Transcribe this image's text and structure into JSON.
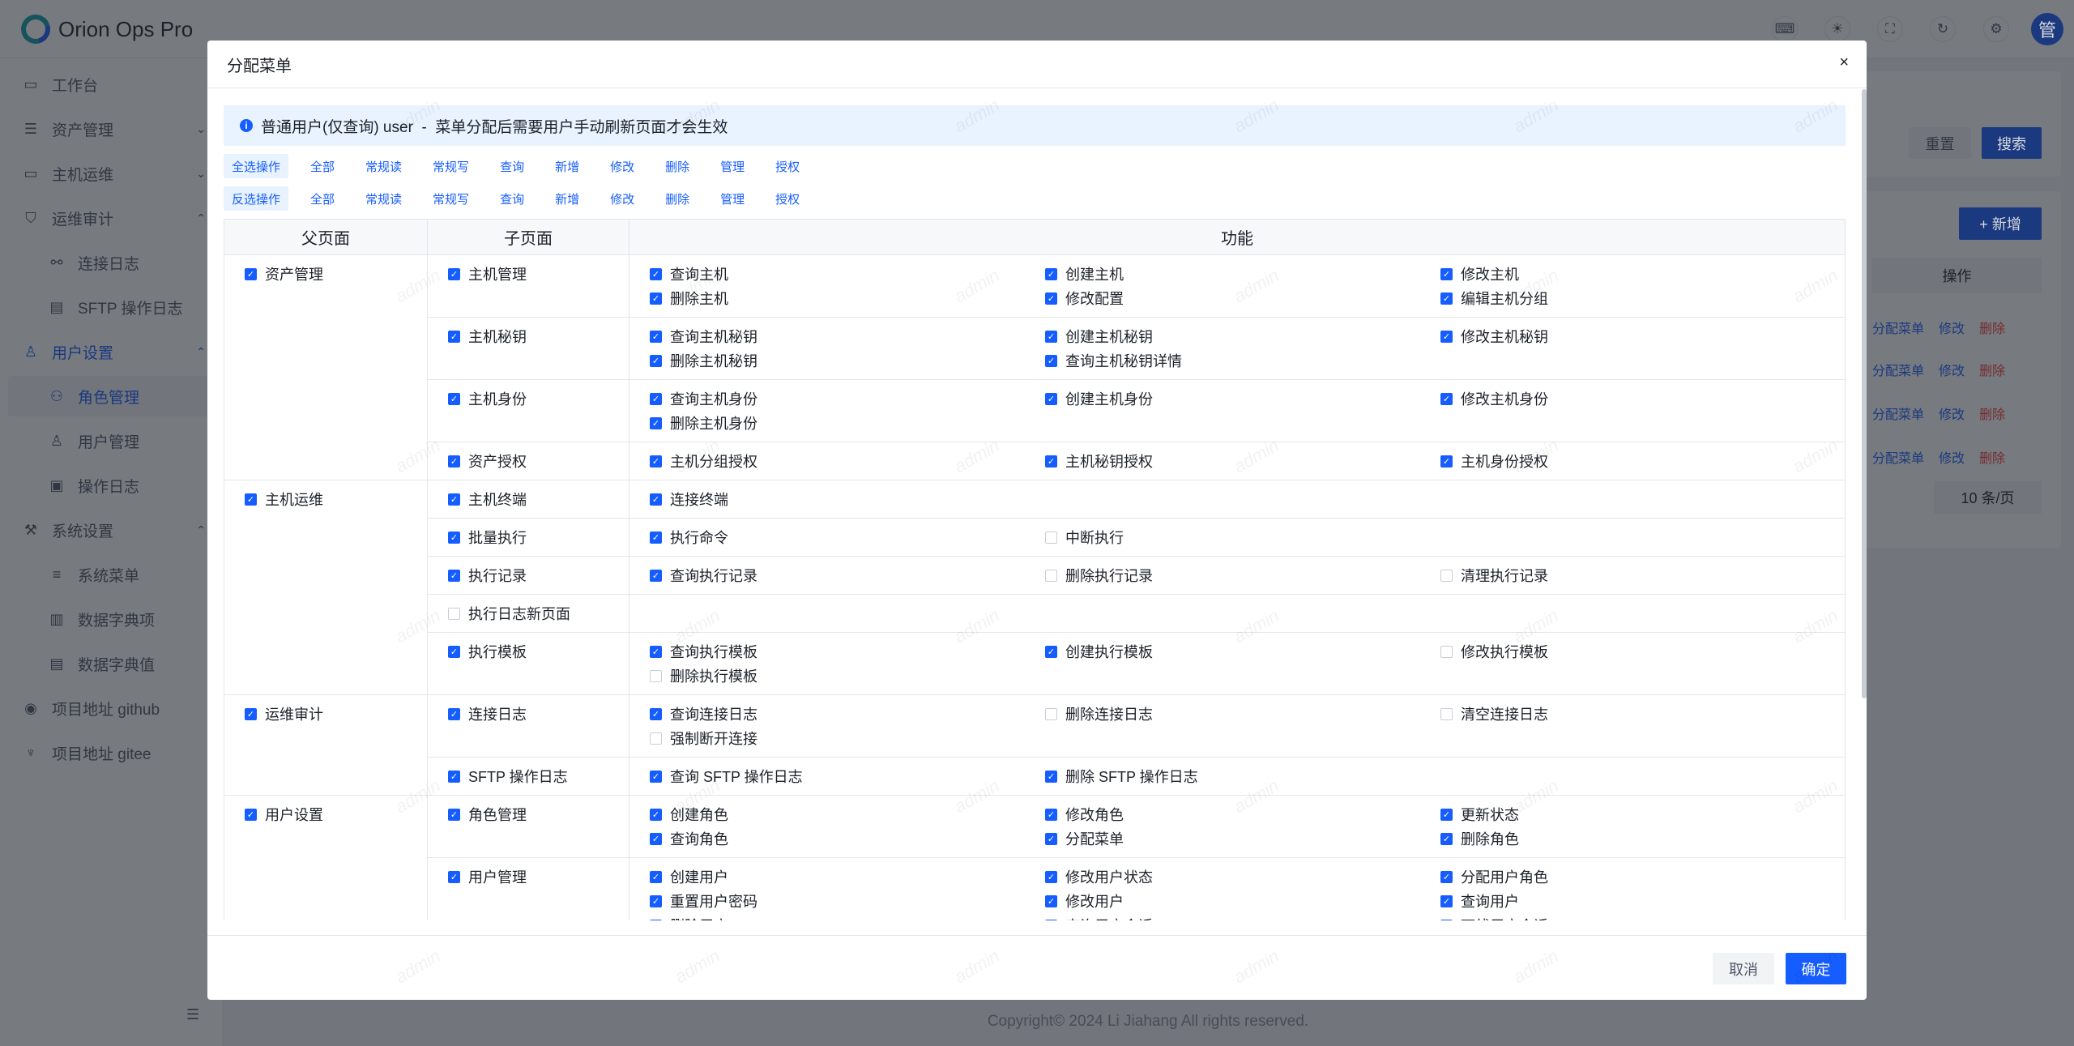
{
  "app": {
    "title": "Orion Ops Pro",
    "avatar": "管",
    "header_icons": [
      "code-icon",
      "theme-icon",
      "fullscreen-icon",
      "refresh-icon",
      "settings-icon"
    ]
  },
  "sidebar": {
    "items": [
      {
        "label": "工作台",
        "icon": "dashboard-icon",
        "level": "top"
      },
      {
        "label": "资产管理",
        "icon": "asset-icon",
        "level": "top",
        "arrow": "v"
      },
      {
        "label": "主机运维",
        "icon": "monitor-icon",
        "level": "top",
        "arrow": "v"
      },
      {
        "label": "运维审计",
        "icon": "shield-icon",
        "level": "top",
        "arrow": "^"
      },
      {
        "label": "连接日志",
        "icon": "link-icon",
        "level": "sub"
      },
      {
        "label": "SFTP 操作日志",
        "icon": "file-icon",
        "level": "sub"
      },
      {
        "label": "用户设置",
        "icon": "user-icon",
        "level": "top",
        "arrow": "^",
        "active": true
      },
      {
        "label": "角色管理",
        "icon": "users-icon",
        "level": "sub",
        "selected": true
      },
      {
        "label": "用户管理",
        "icon": "user-add-icon",
        "level": "sub"
      },
      {
        "label": "操作日志",
        "icon": "log-icon",
        "level": "sub"
      },
      {
        "label": "系统设置",
        "icon": "wrench-icon",
        "level": "top",
        "arrow": "^"
      },
      {
        "label": "系统菜单",
        "icon": "menu-icon",
        "level": "sub"
      },
      {
        "label": "数据字典项",
        "icon": "book-icon",
        "level": "sub"
      },
      {
        "label": "数据字典值",
        "icon": "table-icon",
        "level": "sub"
      },
      {
        "label": "项目地址 github",
        "icon": "github-icon",
        "level": "top"
      },
      {
        "label": "项目地址 gitee",
        "icon": "gitee-icon",
        "level": "top"
      }
    ]
  },
  "background": {
    "reset": "重置",
    "search": "搜索",
    "add": "+ 新增",
    "op_header": "操作",
    "row_actions": [
      "分配菜单",
      "修改",
      "删除"
    ],
    "page_size": "10 条/页",
    "copyright": "Copyright© 2024 Li Jiahang All rights reserved."
  },
  "modal": {
    "title": "分配菜单",
    "close": "×",
    "alert": "普通用户(仅查询) user  -  菜单分配后需要用户手动刷新页面才会生效",
    "select_row": {
      "lead": "全选操作",
      "items": [
        "全部",
        "常规读",
        "常规写",
        "查询",
        "新增",
        "修改",
        "删除",
        "管理",
        "授权"
      ]
    },
    "invert_row": {
      "lead": "反选操作",
      "items": [
        "全部",
        "常规读",
        "常规写",
        "查询",
        "新增",
        "修改",
        "删除",
        "管理",
        "授权"
      ]
    },
    "columns": [
      "父页面",
      "子页面",
      "功能"
    ],
    "groups": [
      {
        "label": "资产管理",
        "checked": true,
        "children": [
          {
            "label": "主机管理",
            "checked": true,
            "functions": [
              [
                "查询主机",
                true
              ],
              [
                "创建主机",
                true
              ],
              [
                "修改主机",
                true
              ],
              [
                "删除主机",
                true
              ],
              [
                "修改配置",
                true
              ],
              [
                "编辑主机分组",
                true
              ]
            ]
          },
          {
            "label": "主机秘钥",
            "checked": true,
            "functions": [
              [
                "查询主机秘钥",
                true
              ],
              [
                "创建主机秘钥",
                true
              ],
              [
                "修改主机秘钥",
                true
              ],
              [
                "删除主机秘钥",
                true
              ],
              [
                "查询主机秘钥详情",
                true
              ]
            ]
          },
          {
            "label": "主机身份",
            "checked": true,
            "functions": [
              [
                "查询主机身份",
                true
              ],
              [
                "创建主机身份",
                true
              ],
              [
                "修改主机身份",
                true
              ],
              [
                "删除主机身份",
                true
              ]
            ]
          },
          {
            "label": "资产授权",
            "checked": true,
            "functions": [
              [
                "主机分组授权",
                true
              ],
              [
                "主机秘钥授权",
                true
              ],
              [
                "主机身份授权",
                true
              ]
            ]
          }
        ]
      },
      {
        "label": "主机运维",
        "checked": true,
        "children": [
          {
            "label": "主机终端",
            "checked": true,
            "functions": [
              [
                "连接终端",
                true
              ]
            ]
          },
          {
            "label": "批量执行",
            "checked": true,
            "functions": [
              [
                "执行命令",
                true
              ],
              [
                "中断执行",
                false
              ]
            ]
          },
          {
            "label": "执行记录",
            "checked": true,
            "functions": [
              [
                "查询执行记录",
                true
              ],
              [
                "删除执行记录",
                false
              ],
              [
                "清理执行记录",
                false
              ]
            ]
          },
          {
            "label": "执行日志新页面",
            "checked": false,
            "functions": []
          },
          {
            "label": "执行模板",
            "checked": true,
            "functions": [
              [
                "查询执行模板",
                true
              ],
              [
                "创建执行模板",
                true
              ],
              [
                "修改执行模板",
                false
              ],
              [
                "删除执行模板",
                false
              ]
            ]
          }
        ]
      },
      {
        "label": "运维审计",
        "checked": true,
        "children": [
          {
            "label": "连接日志",
            "checked": true,
            "functions": [
              [
                "查询连接日志",
                true
              ],
              [
                "删除连接日志",
                false
              ],
              [
                "清空连接日志",
                false
              ],
              [
                "强制断开连接",
                false
              ]
            ]
          },
          {
            "label": "SFTP 操作日志",
            "checked": true,
            "functions": [
              [
                "查询 SFTP 操作日志",
                true
              ],
              [
                "删除 SFTP 操作日志",
                true
              ]
            ]
          }
        ]
      },
      {
        "label": "用户设置",
        "checked": true,
        "children": [
          {
            "label": "角色管理",
            "checked": true,
            "functions": [
              [
                "创建角色",
                true
              ],
              [
                "修改角色",
                true
              ],
              [
                "更新状态",
                true
              ],
              [
                "查询角色",
                true
              ],
              [
                "分配菜单",
                true
              ],
              [
                "删除角色",
                true
              ]
            ]
          },
          {
            "label": "用户管理",
            "checked": true,
            "functions": [
              [
                "创建用户",
                true
              ],
              [
                "修改用户状态",
                true
              ],
              [
                "分配用户角色",
                true
              ],
              [
                "重置用户密码",
                true
              ],
              [
                "修改用户",
                true
              ],
              [
                "查询用户",
                true
              ],
              [
                "删除用户",
                true
              ],
              [
                "查询用户会话",
                true
              ],
              [
                "下线用户会话",
                true
              ]
            ]
          }
        ]
      }
    ],
    "cancel": "取消",
    "ok": "确定"
  },
  "watermark": "admin",
  "colors": {
    "primary": "#165dff",
    "danger": "#f53f3f",
    "alert_bg": "#e8f3ff"
  }
}
